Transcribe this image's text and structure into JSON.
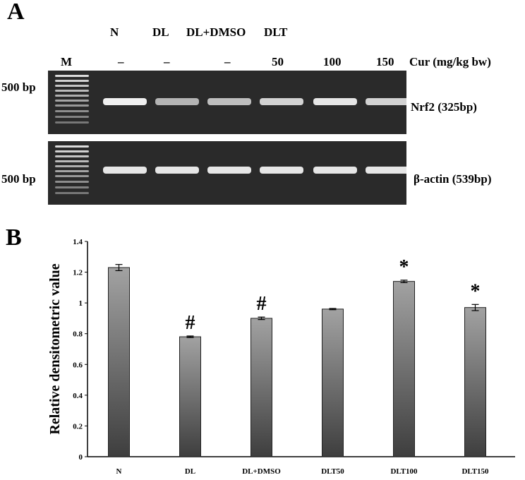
{
  "panel_a": {
    "letter": "A",
    "group_headers": [
      "N",
      "DL",
      "DL+DMSO",
      "DLT"
    ],
    "marker_label": "M",
    "cur_values": [
      "–",
      "–",
      "–",
      "50",
      "100",
      "150"
    ],
    "cur_label": "Cur (mg/kg bw)",
    "gel_top": {
      "size_label": "500 bp",
      "band_label": "Nrf2 (325bp)",
      "band_intensity": [
        1.0,
        0.7,
        0.75,
        0.85,
        0.95,
        0.85
      ]
    },
    "gel_bottom": {
      "size_label": "500 bp",
      "band_label": "β-actin (539bp)",
      "band_intensity": [
        0.95,
        0.95,
        0.95,
        0.95,
        0.95,
        0.95
      ]
    }
  },
  "panel_b": {
    "letter": "B"
  },
  "chart_data": {
    "type": "bar",
    "categories": [
      "N",
      "DL",
      "DL+DMSO",
      "DLT50",
      "DLT100",
      "DLT150"
    ],
    "values": [
      1.23,
      0.78,
      0.9,
      0.96,
      1.14,
      0.97
    ],
    "errors": [
      0.02,
      0.005,
      0.008,
      0.004,
      0.008,
      0.02
    ],
    "annotations": [
      "",
      "#",
      "#",
      "",
      "*",
      "*"
    ],
    "ylabel": "Relative densitometric value",
    "xlabel": "",
    "ylim": [
      0,
      1.4
    ],
    "yticks": [
      "0",
      "0.2",
      "0.4",
      "0.6",
      "0.8",
      "1",
      "1.2",
      "1.4"
    ],
    "grid": false,
    "bar_color": "#8a8a8a"
  }
}
